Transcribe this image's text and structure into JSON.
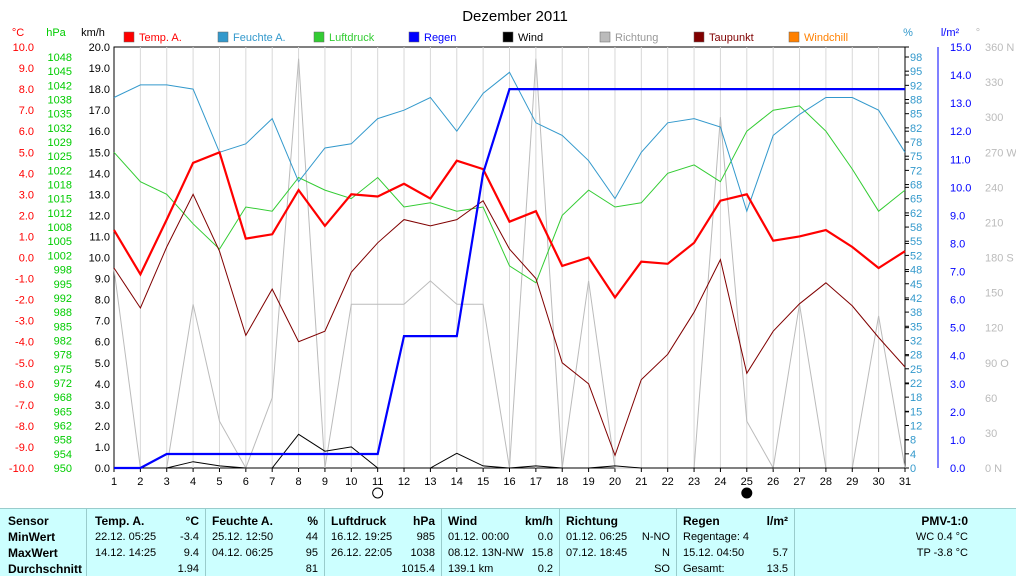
{
  "chart_data": {
    "type": "line",
    "title": "Dezember 2011",
    "x": [
      "1",
      "2",
      "3",
      "4",
      "5",
      "6",
      "7",
      "8",
      "9",
      "10",
      "11",
      "12",
      "13",
      "14",
      "15",
      "16",
      "17",
      "18",
      "19",
      "20",
      "21",
      "22",
      "23",
      "24",
      "25",
      "26",
      "27",
      "28",
      "29",
      "30",
      "31"
    ],
    "axes": {
      "temp": {
        "unit": "°C",
        "min": -10,
        "max": 10,
        "ticks": [
          "10.0",
          "9.0",
          "8.0",
          "7.0",
          "6.0",
          "5.0",
          "4.0",
          "3.0",
          "2.0",
          "1.0",
          "0.0",
          "-1.0",
          "-2.0",
          "-3.0",
          "-4.0",
          "-5.0",
          "-6.0",
          "-7.0",
          "-8.0",
          "-9.0",
          "-10.0"
        ]
      },
      "pressure": {
        "unit": "hPa",
        "min": 950,
        "max": 1050,
        "ticks": [
          "1048",
          "1045",
          "1042",
          "1038",
          "1035",
          "1032",
          "1029",
          "1025",
          "1022",
          "1018",
          "1015",
          "1012",
          "1008",
          "1005",
          "1002",
          "998",
          "995",
          "992",
          "988",
          "985",
          "982",
          "978",
          "975",
          "972",
          "968",
          "965",
          "962",
          "958",
          "954",
          "950"
        ]
      },
      "wind": {
        "unit": "km/h",
        "min": 0,
        "max": 20,
        "ticks": [
          "20.0",
          "19.0",
          "18.0",
          "17.0",
          "16.0",
          "15.0",
          "14.0",
          "13.0",
          "12.0",
          "11.0",
          "10.0",
          "9.0",
          "8.0",
          "7.0",
          "6.0",
          "5.0",
          "4.0",
          "3.0",
          "2.0",
          "1.0",
          "0.0"
        ]
      },
      "humidity": {
        "unit": "%",
        "min": 0,
        "max": 100,
        "ticks": [
          "98",
          "95",
          "92",
          "88",
          "85",
          "82",
          "78",
          "75",
          "72",
          "68",
          "65",
          "62",
          "58",
          "55",
          "52",
          "48",
          "45",
          "42",
          "38",
          "35",
          "32",
          "28",
          "25",
          "22",
          "18",
          "15",
          "12",
          "8",
          "4",
          "0"
        ]
      },
      "rain": {
        "unit": "l/m²",
        "min": 0,
        "max": 15,
        "ticks": [
          "15.0",
          "14.0",
          "13.0",
          "12.0",
          "11.0",
          "10.0",
          "9.0",
          "8.0",
          "7.0",
          "6.0",
          "5.0",
          "4.0",
          "3.0",
          "2.0",
          "1.0",
          "0.0"
        ]
      },
      "direction": {
        "unit": "°",
        "min": 0,
        "max": 360,
        "ticks": [
          "360 N",
          "330",
          "300",
          "270 W",
          "240",
          "210",
          "180 S",
          "150",
          "120",
          "90 O",
          "60",
          "30",
          "0 N"
        ]
      }
    },
    "legend": [
      {
        "name": "Temp. A.",
        "color": "#ff0000"
      },
      {
        "name": "Feuchte A.",
        "color": "#3399cc"
      },
      {
        "name": "Luftdruck",
        "color": "#33cc33"
      },
      {
        "name": "Regen",
        "color": "#0000ff"
      },
      {
        "name": "Wind",
        "color": "#000000"
      },
      {
        "name": "Richtung",
        "color": "#bbbbbb"
      },
      {
        "name": "Taupunkt",
        "color": "#800000"
      },
      {
        "name": "Windchill",
        "color": "#ff8000"
      }
    ],
    "series": [
      {
        "name": "Temp. A.",
        "axis": "temp",
        "color": "#ff0000",
        "values": [
          1.3,
          -0.8,
          1.8,
          4.5,
          5.0,
          0.9,
          1.1,
          3.2,
          1.5,
          3.0,
          2.9,
          3.5,
          2.8,
          4.6,
          4.2,
          1.7,
          2.2,
          -0.4,
          0.0,
          -1.9,
          -0.2,
          -0.3,
          0.7,
          2.7,
          3.0,
          0.8,
          1.0,
          1.3,
          0.5,
          -0.5,
          0.3
        ]
      },
      {
        "name": "Feuchte A.",
        "axis": "humidity",
        "color": "#3399cc",
        "values": [
          88,
          91,
          91,
          90,
          75,
          77,
          83,
          68,
          76,
          77,
          83,
          85,
          88,
          80,
          89,
          94,
          82,
          79,
          73,
          64,
          75,
          82,
          83,
          81,
          61,
          79,
          84,
          88,
          88,
          85,
          75
        ]
      },
      {
        "name": "Luftdruck",
        "axis": "pressure",
        "color": "#33cc33",
        "values": [
          1025,
          1018,
          1015,
          1008,
          1002,
          1012,
          1011,
          1019,
          1016,
          1014,
          1019,
          1012,
          1013,
          1011,
          1012,
          998,
          994,
          1010,
          1016,
          1012,
          1013,
          1020,
          1022,
          1018,
          1030,
          1035,
          1036,
          1030,
          1021,
          1011,
          1016
        ]
      },
      {
        "name": "Regen",
        "axis": "rain",
        "color": "#0000ff",
        "values": [
          0,
          0,
          0.5,
          0.5,
          0.5,
          0.5,
          0.5,
          0.5,
          0.5,
          0.5,
          0.5,
          4.7,
          4.7,
          4.7,
          10.5,
          13.5,
          13.5,
          13.5,
          13.5,
          13.5,
          13.5,
          13.5,
          13.5,
          13.5,
          13.5,
          13.5,
          13.5,
          13.5,
          13.5,
          13.5,
          13.5
        ]
      },
      {
        "name": "Wind",
        "axis": "wind",
        "color": "#000000",
        "values": [
          0.0,
          0.0,
          0.0,
          0.3,
          0.1,
          0.0,
          0.0,
          1.6,
          0.8,
          1.0,
          0.0,
          0.0,
          0.0,
          0.7,
          0.1,
          0.0,
          0.1,
          0.0,
          0.0,
          0.1,
          0.0,
          0.0,
          0.0,
          0.0,
          0.0,
          0.0,
          0.0,
          0.0,
          0.0,
          0.0,
          0.0
        ]
      },
      {
        "name": "Richtung",
        "axis": "direction",
        "color": "#bbbbbb",
        "values": [
          170,
          0,
          0,
          140,
          40,
          0,
          60,
          350,
          0,
          140,
          140,
          140,
          160,
          140,
          140,
          0,
          350,
          0,
          160,
          0,
          0,
          0,
          0,
          300,
          40,
          0,
          140,
          0,
          0,
          130,
          0
        ]
      },
      {
        "name": "Taupunkt",
        "axis": "temp",
        "color": "#800000",
        "values": [
          -0.5,
          -2.4,
          0.5,
          3.0,
          0.3,
          -3.7,
          -1.5,
          -4.0,
          -3.5,
          -0.7,
          0.7,
          1.8,
          1.5,
          1.8,
          2.7,
          0.4,
          -1.0,
          -5.0,
          -6.0,
          -9.4,
          -5.8,
          -4.6,
          -2.6,
          -0.1,
          -5.5,
          -3.5,
          -2.2,
          -1.2,
          -2.3,
          -3.8,
          -5.2
        ]
      }
    ],
    "markers": [
      {
        "type": "new-moon-icon",
        "x": "11"
      },
      {
        "type": "full-moon-icon",
        "x": "25"
      }
    ]
  },
  "stats": {
    "sensor": {
      "title": "Sensor",
      "rows": [
        "MinWert",
        "MaxWert",
        "Durchschnitt"
      ]
    },
    "temp": {
      "title": "Temp. A.",
      "unit": "°C",
      "rows": [
        [
          "22.12.  05:25",
          "-3.4"
        ],
        [
          "14.12.  14:25",
          "9.4"
        ],
        [
          "",
          "1.94"
        ]
      ]
    },
    "humidity": {
      "title": "Feuchte A.",
      "unit": "%",
      "rows": [
        [
          "25.12.  12:50",
          "44"
        ],
        [
          "04.12.  06:25",
          "95"
        ],
        [
          "",
          "81"
        ]
      ]
    },
    "pressure": {
      "title": "Luftdruck",
      "unit": "hPa",
      "rows": [
        [
          "16.12.  19:25",
          "985"
        ],
        [
          "26.12.  22:05",
          "1038"
        ],
        [
          "",
          "1015.4"
        ]
      ]
    },
    "wind": {
      "title": "Wind",
      "unit": "km/h",
      "rows": [
        [
          "01.12.  00:00",
          "0.0"
        ],
        [
          "08.12.  13N-NW",
          "15.8"
        ],
        [
          "139.1 km",
          "0.2"
        ]
      ]
    },
    "direction": {
      "title": "Richtung",
      "unit": "",
      "rows": [
        [
          "01.12.  06:25",
          "N-NO"
        ],
        [
          "07.12.  18:45",
          "N"
        ],
        [
          "",
          "SO"
        ]
      ]
    },
    "rain": {
      "title": "Regen",
      "unit": "l/m²",
      "rows": [
        [
          "Regentage: 4",
          ""
        ],
        [
          "15.12.  04:50",
          "5.7"
        ],
        [
          "Gesamt:",
          "13.5"
        ]
      ]
    },
    "pmv": {
      "title": "PMV-1:0",
      "rows": [
        "WC 0.4 °C",
        "TP -3.8 °C"
      ]
    }
  }
}
